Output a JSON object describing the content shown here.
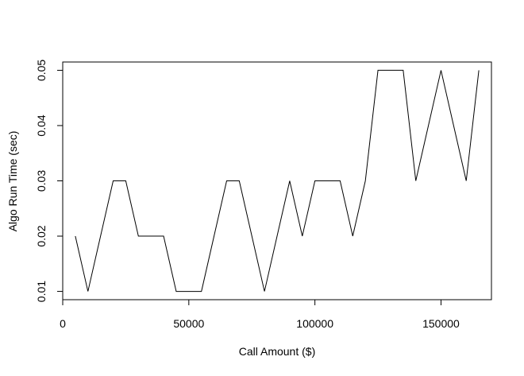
{
  "chart_data": {
    "type": "line",
    "title": "",
    "xlabel": "Call Amount ($)",
    "ylabel": "Algo Run Time (sec)",
    "xlim": [
      0,
      170000
    ],
    "ylim": [
      0.0085,
      0.0515
    ],
    "x_ticks": [
      0,
      50000,
      100000,
      150000
    ],
    "y_ticks": [
      0.01,
      0.02,
      0.03,
      0.04,
      0.05
    ],
    "x_tick_labels": [
      "0",
      "50000",
      "100000",
      "150000"
    ],
    "y_tick_labels": [
      "0.01",
      "0.02",
      "0.03",
      "0.04",
      "0.05"
    ],
    "grid": false,
    "line_color": "#000000",
    "x": [
      5000,
      10000,
      15000,
      20000,
      25000,
      30000,
      35000,
      40000,
      45000,
      50000,
      55000,
      60000,
      65000,
      70000,
      75000,
      80000,
      85000,
      90000,
      95000,
      100000,
      105000,
      110000,
      115000,
      120000,
      125000,
      130000,
      135000,
      140000,
      145000,
      150000,
      155000,
      160000,
      165000
    ],
    "y": [
      0.02,
      0.01,
      0.02,
      0.03,
      0.03,
      0.02,
      0.02,
      0.02,
      0.01,
      0.01,
      0.01,
      0.02,
      0.03,
      0.03,
      0.02,
      0.01,
      0.02,
      0.03,
      0.02,
      0.03,
      0.03,
      0.03,
      0.02,
      0.03,
      0.05,
      0.05,
      0.05,
      0.03,
      0.04,
      0.05,
      0.04,
      0.03,
      0.05
    ]
  }
}
